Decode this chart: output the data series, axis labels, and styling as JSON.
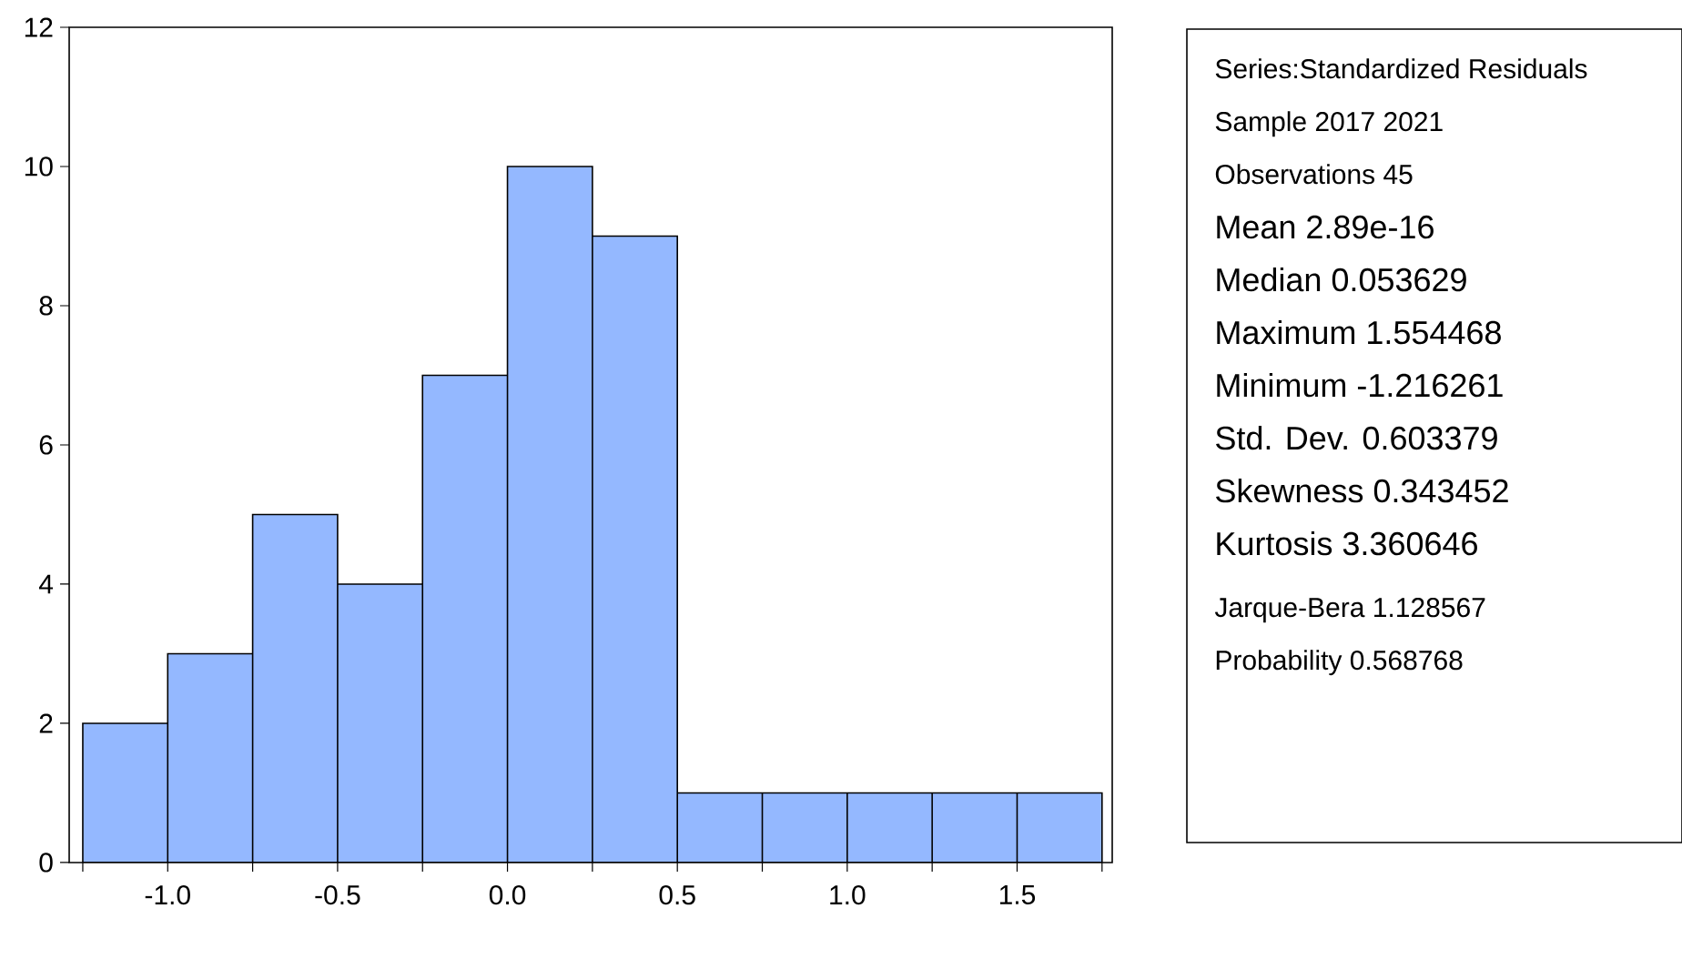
{
  "chart_data": {
    "type": "histogram",
    "bins": [
      -1.25,
      -1.0,
      -0.75,
      -0.5,
      -0.25,
      0.0,
      0.25,
      0.5,
      0.75,
      1.0,
      1.25,
      1.5,
      1.75
    ],
    "values": [
      2,
      3,
      5,
      4,
      7,
      10,
      9,
      1,
      1,
      1,
      1,
      1
    ],
    "color": "#94b8ff",
    "xlim": [
      -1.29,
      1.78
    ],
    "ylim": [
      0,
      12
    ],
    "xticks": [
      {
        "value": -1.25,
        "label": null
      },
      {
        "value": -1.0,
        "label": "-1.0"
      },
      {
        "value": -0.75,
        "label": null
      },
      {
        "value": -0.5,
        "label": "-0.5"
      },
      {
        "value": -0.25,
        "label": null
      },
      {
        "value": 0.0,
        "label": "0.0"
      },
      {
        "value": 0.25,
        "label": null
      },
      {
        "value": 0.5,
        "label": "0.5"
      },
      {
        "value": 0.75,
        "label": null
      },
      {
        "value": 1.0,
        "label": "1.0"
      },
      {
        "value": 1.25,
        "label": null
      },
      {
        "value": 1.5,
        "label": "1.5"
      },
      {
        "value": 1.75,
        "label": null
      }
    ],
    "yticks": [
      0,
      2,
      4,
      6,
      8,
      10,
      12
    ],
    "grid": false,
    "annotations": [
      "Series:Standardized Residuals",
      "Sample 2017 2021",
      "Observations 45",
      "Mean 2.89e-16",
      "Median 0.053629",
      "Maximum 1.554468",
      "Minimum -1.216261",
      "Std. Dev. 0.603379",
      "Skewness 0.343452",
      "Kurtosis 3.360646",
      "Jarque-Bera 1.128567",
      "Probability 0.568768"
    ]
  }
}
